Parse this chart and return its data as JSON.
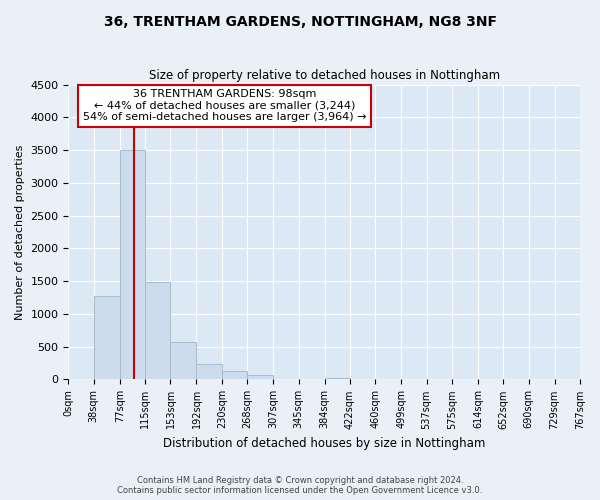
{
  "title": "36, TRENTHAM GARDENS, NOTTINGHAM, NG8 3NF",
  "subtitle": "Size of property relative to detached houses in Nottingham",
  "xlabel": "Distribution of detached houses by size in Nottingham",
  "ylabel": "Number of detached properties",
  "bin_labels": [
    "0sqm",
    "38sqm",
    "77sqm",
    "115sqm",
    "153sqm",
    "192sqm",
    "230sqm",
    "268sqm",
    "307sqm",
    "345sqm",
    "384sqm",
    "422sqm",
    "460sqm",
    "499sqm",
    "537sqm",
    "575sqm",
    "614sqm",
    "652sqm",
    "690sqm",
    "729sqm",
    "767sqm"
  ],
  "bar_values": [
    0,
    1270,
    3500,
    1480,
    575,
    240,
    130,
    70,
    0,
    0,
    20,
    0,
    0,
    0,
    0,
    0,
    0,
    0,
    0,
    0
  ],
  "bar_color": "#ccdcec",
  "bar_edge_color": "#aabccc",
  "property_line_x": 98,
  "bin_edges": [
    0,
    38,
    77,
    115,
    153,
    192,
    230,
    268,
    307,
    345,
    384,
    422,
    460,
    499,
    537,
    575,
    614,
    652,
    690,
    729,
    767
  ],
  "annotation_title": "36 TRENTHAM GARDENS: 98sqm",
  "annotation_line1": "← 44% of detached houses are smaller (3,244)",
  "annotation_line2": "54% of semi-detached houses are larger (3,964) →",
  "annotation_box_color": "#ffffff",
  "annotation_box_edge": "#cc0000",
  "vline_color": "#cc0000",
  "ylim": [
    0,
    4500
  ],
  "yticks": [
    0,
    500,
    1000,
    1500,
    2000,
    2500,
    3000,
    3500,
    4000,
    4500
  ],
  "footer1": "Contains HM Land Registry data © Crown copyright and database right 2024.",
  "footer2": "Contains public sector information licensed under the Open Government Licence v3.0.",
  "background_color": "#eaf0f8",
  "plot_background_color": "#dce8f4"
}
